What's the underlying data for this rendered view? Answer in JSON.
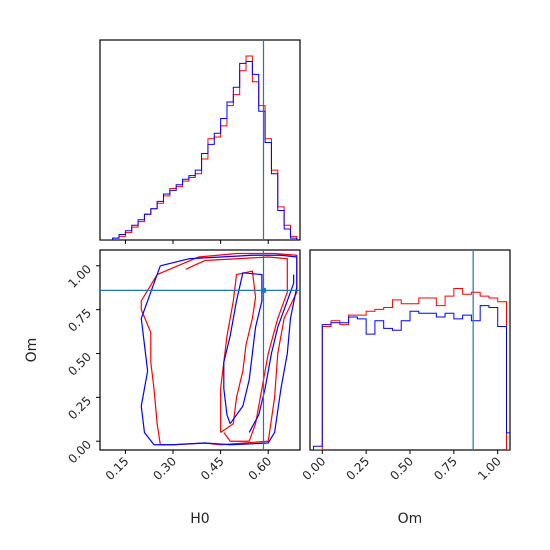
{
  "chart_data": [
    {
      "panel": "H0 marginal",
      "type": "histogram",
      "xlabel": "",
      "ylabel": "",
      "xlim": [
        0.07,
        0.7
      ],
      "truth_line": 0.585,
      "bins_x": [
        0.07,
        0.09,
        0.11,
        0.13,
        0.15,
        0.17,
        0.19,
        0.21,
        0.23,
        0.25,
        0.27,
        0.29,
        0.31,
        0.33,
        0.35,
        0.37,
        0.39,
        0.41,
        0.43,
        0.45,
        0.47,
        0.49,
        0.51,
        0.53,
        0.55,
        0.57,
        0.59,
        0.61,
        0.63,
        0.65,
        0.67,
        0.69
      ],
      "series": [
        {
          "name": "",
          "color": "#ff0000",
          "values": [
            0,
            0,
            0.01,
            0.02,
            0.04,
            0.07,
            0.1,
            0.14,
            0.17,
            0.2,
            0.24,
            0.28,
            0.29,
            0.32,
            0.34,
            0.36,
            0.44,
            0.55,
            0.56,
            0.62,
            0.73,
            0.79,
            0.92,
            1.0,
            0.86,
            0.73,
            0.55,
            0.38,
            0.18,
            0.08,
            0.02
          ]
        },
        {
          "name": "",
          "color": "#0000ff",
          "values": [
            0,
            0,
            0.01,
            0.03,
            0.05,
            0.08,
            0.11,
            0.14,
            0.17,
            0.21,
            0.25,
            0.27,
            0.3,
            0.33,
            0.35,
            0.38,
            0.47,
            0.52,
            0.58,
            0.66,
            0.75,
            0.83,
            0.96,
            0.97,
            0.9,
            0.7,
            0.53,
            0.36,
            0.16,
            0.06,
            0.01
          ]
        }
      ]
    },
    {
      "panel": "Om marginal",
      "type": "histogram",
      "xlabel": "Om",
      "ylabel": "",
      "xlim": [
        -0.07,
        1.07
      ],
      "truth_line": 0.86,
      "xticks": [
        "0.00",
        "0.25",
        "0.50",
        "0.75",
        "1.00"
      ],
      "bins_x": [
        -0.1,
        -0.05,
        0.0,
        0.05,
        0.1,
        0.15,
        0.2,
        0.25,
        0.3,
        0.35,
        0.4,
        0.45,
        0.5,
        0.55,
        0.6,
        0.65,
        0.7,
        0.75,
        0.8,
        0.85,
        0.9,
        0.95,
        1.0,
        1.05,
        1.1
      ],
      "series": [
        {
          "name": "",
          "color": "#ff0000",
          "values": [
            0,
            0,
            0.65,
            0.68,
            0.66,
            0.71,
            0.71,
            0.73,
            0.74,
            0.75,
            0.79,
            0.77,
            0.77,
            0.8,
            0.8,
            0.76,
            0.81,
            0.85,
            0.82,
            0.83,
            0.81,
            0.8,
            0.78,
            0,
            0
          ]
        },
        {
          "name": "",
          "color": "#0000ff",
          "values": [
            0,
            0.02,
            0.66,
            0.67,
            0.67,
            0.7,
            0.69,
            0.61,
            0.68,
            0.64,
            0.63,
            0.68,
            0.73,
            0.72,
            0.72,
            0.7,
            0.72,
            0.69,
            0.71,
            0.68,
            0.76,
            0.75,
            0.65,
            0.09,
            0.02
          ]
        }
      ]
    },
    {
      "panel": "H0 vs Om",
      "type": "contour",
      "xlabel": "H0",
      "ylabel": "Om",
      "xlim": [
        0.07,
        0.7
      ],
      "ylim": [
        -0.05,
        1.09
      ],
      "xticks": [
        "0.15",
        "0.30",
        "0.45",
        "0.60"
      ],
      "yticks": [
        "0.00",
        "0.25",
        "0.50",
        "0.75",
        "1.00"
      ],
      "truth": {
        "x": 0.585,
        "y": 0.86
      },
      "contours": [
        {
          "color": "#ff0000",
          "points": [
            [
              0.2,
              0.8
            ],
            [
              0.25,
              0.95
            ],
            [
              0.38,
              1.05
            ],
            [
              0.5,
              1.07
            ],
            [
              0.62,
              1.07
            ],
            [
              0.69,
              1.06
            ],
            [
              0.69,
              0.85
            ],
            [
              0.65,
              0.7
            ],
            [
              0.63,
              0.5
            ],
            [
              0.62,
              0.25
            ],
            [
              0.6,
              0.0
            ],
            [
              0.45,
              -0.02
            ],
            [
              0.4,
              -0.01
            ],
            [
              0.3,
              -0.02
            ],
            [
              0.26,
              -0.02
            ],
            [
              0.25,
              0.1
            ],
            [
              0.24,
              0.3
            ],
            [
              0.23,
              0.45
            ],
            [
              0.23,
              0.62
            ],
            [
              0.2,
              0.75
            ],
            [
              0.2,
              0.8
            ]
          ]
        },
        {
          "color": "#ff0000",
          "points": [
            [
              0.45,
              0.05
            ],
            [
              0.49,
              0.1
            ],
            [
              0.5,
              0.25
            ],
            [
              0.52,
              0.4
            ],
            [
              0.53,
              0.55
            ],
            [
              0.55,
              0.7
            ],
            [
              0.56,
              0.82
            ],
            [
              0.55,
              0.97
            ],
            [
              0.5,
              0.95
            ],
            [
              0.49,
              0.8
            ],
            [
              0.47,
              0.6
            ],
            [
              0.46,
              0.45
            ],
            [
              0.45,
              0.3
            ],
            [
              0.45,
              0.15
            ],
            [
              0.45,
              0.05
            ]
          ]
        },
        {
          "color": "#ff0000",
          "points": [
            [
              0.34,
              0.98
            ],
            [
              0.4,
              1.03
            ],
            [
              0.5,
              1.04
            ],
            [
              0.6,
              1.05
            ],
            [
              0.66,
              1.04
            ],
            [
              0.66,
              0.85
            ],
            [
              0.63,
              0.7
            ],
            [
              0.6,
              0.5
            ],
            [
              0.58,
              0.3
            ],
            [
              0.56,
              0.1
            ],
            [
              0.54,
              0.0
            ],
            [
              0.48,
              0.0
            ],
            [
              0.46,
              0.05
            ]
          ]
        },
        {
          "color": "#0000ff",
          "points": [
            [
              0.26,
              1.0
            ],
            [
              0.35,
              1.04
            ],
            [
              0.45,
              1.05
            ],
            [
              0.55,
              1.06
            ],
            [
              0.64,
              1.06
            ],
            [
              0.69,
              1.05
            ],
            [
              0.69,
              0.88
            ],
            [
              0.67,
              0.7
            ],
            [
              0.66,
              0.5
            ],
            [
              0.64,
              0.3
            ],
            [
              0.62,
              0.05
            ],
            [
              0.6,
              -0.01
            ],
            [
              0.48,
              -0.02
            ],
            [
              0.4,
              -0.01
            ],
            [
              0.3,
              -0.02
            ],
            [
              0.24,
              -0.02
            ],
            [
              0.21,
              0.05
            ],
            [
              0.2,
              0.2
            ],
            [
              0.22,
              0.4
            ],
            [
              0.21,
              0.55
            ],
            [
              0.2,
              0.7
            ],
            [
              0.23,
              0.85
            ],
            [
              0.26,
              1.0
            ]
          ]
        },
        {
          "color": "#0000ff",
          "points": [
            [
              0.48,
              0.1
            ],
            [
              0.52,
              0.2
            ],
            [
              0.54,
              0.35
            ],
            [
              0.55,
              0.5
            ],
            [
              0.56,
              0.65
            ],
            [
              0.58,
              0.8
            ],
            [
              0.58,
              0.95
            ],
            [
              0.52,
              0.96
            ],
            [
              0.5,
              0.8
            ],
            [
              0.48,
              0.6
            ],
            [
              0.46,
              0.45
            ],
            [
              0.46,
              0.3
            ],
            [
              0.47,
              0.15
            ],
            [
              0.48,
              0.1
            ]
          ]
        },
        {
          "color": "#0000ff",
          "points": [
            [
              0.54,
              0.05
            ],
            [
              0.57,
              0.15
            ],
            [
              0.59,
              0.3
            ],
            [
              0.61,
              0.5
            ],
            [
              0.63,
              0.65
            ],
            [
              0.66,
              0.8
            ],
            [
              0.68,
              0.9
            ],
            [
              0.68,
              0.95
            ]
          ]
        }
      ]
    }
  ]
}
